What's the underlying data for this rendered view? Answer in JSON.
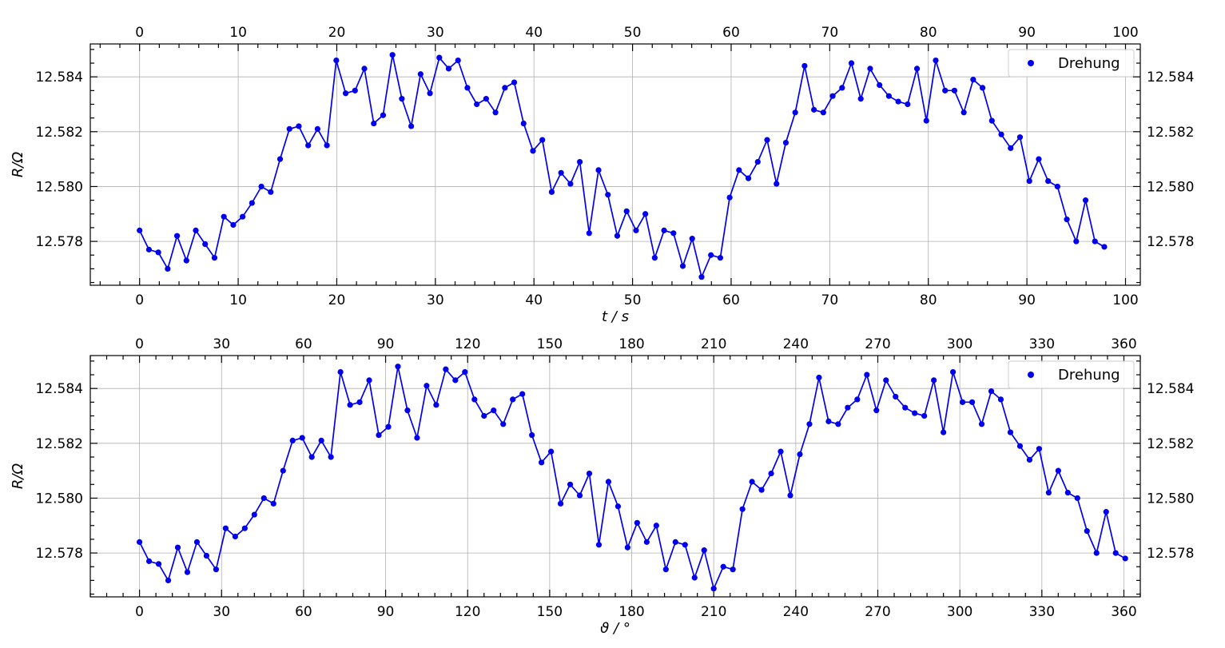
{
  "series_color": "#0000ee",
  "chart_data": [
    {
      "type": "line",
      "marker": "circle",
      "grid": true,
      "legend": {
        "placement": "top-right",
        "entries": [
          "Drehung"
        ]
      },
      "xlabel": "t / s",
      "ylabel": "R/Ω",
      "xlim": [
        -5,
        101.5
      ],
      "ylim": [
        12.5764,
        12.5852
      ],
      "xticks": [
        0,
        10,
        20,
        30,
        40,
        50,
        60,
        70,
        80,
        90,
        100
      ],
      "yticks": [
        12.578,
        12.58,
        12.582,
        12.584
      ],
      "ytick_labels": [
        "12.578",
        "12.580",
        "12.582",
        "12.584"
      ],
      "top_xticks": [
        0,
        10,
        20,
        30,
        40,
        50,
        60,
        70,
        80,
        90,
        100
      ],
      "series": [
        {
          "name": "Drehung",
          "x": [
            0.0,
            0.95,
            1.9,
            2.85,
            3.8,
            4.75,
            5.7,
            6.65,
            7.6,
            8.55,
            9.5,
            10.45,
            11.4,
            12.35,
            13.3,
            14.25,
            15.2,
            16.15,
            17.1,
            18.05,
            19.0,
            19.95,
            20.9,
            21.85,
            22.8,
            23.75,
            24.7,
            25.65,
            26.6,
            27.55,
            28.5,
            29.45,
            30.4,
            31.35,
            32.3,
            33.25,
            34.2,
            35.15,
            36.1,
            37.05,
            38.0,
            38.95,
            39.9,
            40.85,
            41.8,
            42.75,
            43.7,
            44.65,
            45.6,
            46.55,
            47.5,
            48.45,
            49.4,
            50.35,
            51.3,
            52.25,
            53.2,
            54.15,
            55.1,
            56.05,
            57.0,
            57.95,
            58.9,
            59.85,
            60.8,
            61.75,
            62.7,
            63.65,
            64.6,
            65.55,
            66.5,
            67.45,
            68.4,
            69.35,
            70.3,
            71.25,
            72.2,
            73.15,
            74.1,
            75.05,
            76.0,
            76.95,
            77.9,
            78.85,
            79.8,
            80.75,
            81.7,
            82.65,
            83.6,
            84.55,
            85.5,
            86.45,
            87.4,
            88.35,
            89.3,
            90.25,
            91.2,
            92.15,
            93.1,
            94.05,
            95.0,
            95.95,
            96.9,
            97.85
          ],
          "y": [
            12.5784,
            12.5777,
            12.5776,
            12.577,
            12.5782,
            12.5773,
            12.5784,
            12.5779,
            12.5774,
            12.5789,
            12.5786,
            12.5789,
            12.5794,
            12.58,
            12.5798,
            12.581,
            12.5821,
            12.5822,
            12.5815,
            12.5821,
            12.5815,
            12.5846,
            12.5834,
            12.5835,
            12.5843,
            12.5823,
            12.5826,
            12.5848,
            12.5832,
            12.5822,
            12.5841,
            12.5834,
            12.5847,
            12.5843,
            12.5846,
            12.5836,
            12.583,
            12.5832,
            12.5827,
            12.5836,
            12.5838,
            12.5823,
            12.5813,
            12.5817,
            12.5798,
            12.5805,
            12.5801,
            12.5809,
            12.5783,
            12.5806,
            12.5797,
            12.5782,
            12.5791,
            12.5784,
            12.579,
            12.5774,
            12.5784,
            12.5783,
            12.5771,
            12.5781,
            12.5767,
            12.5775,
            12.5774,
            12.5796,
            12.5806,
            12.5803,
            12.5809,
            12.5817,
            12.5801,
            12.5816,
            12.5827,
            12.5844,
            12.5828,
            12.5827,
            12.5833,
            12.5836,
            12.5845,
            12.5832,
            12.5843,
            12.5837,
            12.5833,
            12.5831,
            12.583,
            12.5843,
            12.5824,
            12.5846,
            12.5835,
            12.5835,
            12.5827,
            12.5839,
            12.5836,
            12.5824,
            12.5819,
            12.5814,
            12.5818,
            12.5802,
            12.581,
            12.5802,
            12.58,
            12.5788,
            12.578,
            12.5795,
            12.578,
            12.5778
          ]
        }
      ]
    },
    {
      "type": "line",
      "marker": "circle",
      "grid": true,
      "legend": {
        "placement": "top-right",
        "entries": [
          "Drehung"
        ]
      },
      "xlabel": "ϑ / °",
      "ylabel": "R/Ω",
      "xlim": [
        -18,
        366
      ],
      "ylim": [
        12.5764,
        12.5852
      ],
      "xticks": [
        0,
        30,
        60,
        90,
        120,
        150,
        180,
        210,
        240,
        270,
        300,
        330,
        360
      ],
      "yticks": [
        12.578,
        12.58,
        12.582,
        12.584
      ],
      "ytick_labels": [
        "12.578",
        "12.580",
        "12.582",
        "12.584"
      ],
      "top_xticks": [
        0,
        30,
        60,
        90,
        120,
        150,
        180,
        210,
        240,
        270,
        300,
        330,
        360
      ],
      "series": [
        {
          "name": "Drehung",
          "x": [
            0.0,
            3.5,
            7.0,
            10.5,
            14.0,
            17.5,
            21.0,
            24.5,
            28.0,
            31.5,
            35.0,
            38.5,
            42.0,
            45.5,
            49.0,
            52.5,
            56.0,
            59.5,
            63.0,
            66.5,
            70.0,
            73.5,
            77.0,
            80.5,
            84.0,
            87.5,
            91.0,
            94.5,
            98.0,
            101.5,
            105.0,
            108.5,
            112.0,
            115.5,
            119.0,
            122.5,
            126.0,
            129.5,
            133.0,
            136.5,
            140.0,
            143.5,
            147.0,
            150.5,
            154.0,
            157.5,
            161.0,
            164.5,
            168.0,
            171.5,
            175.0,
            178.5,
            182.0,
            185.5,
            189.0,
            192.5,
            196.0,
            199.5,
            203.0,
            206.5,
            210.0,
            213.5,
            217.0,
            220.5,
            224.0,
            227.5,
            231.0,
            234.5,
            238.0,
            241.5,
            245.0,
            248.5,
            252.0,
            255.5,
            259.0,
            262.5,
            266.0,
            269.5,
            273.0,
            276.5,
            280.0,
            283.5,
            287.0,
            290.5,
            294.0,
            297.5,
            301.0,
            304.5,
            308.0,
            311.5,
            315.0,
            318.5,
            322.0,
            325.5,
            329.0,
            332.5,
            336.0,
            339.5,
            343.0,
            346.5,
            350.0,
            353.5,
            357.0,
            360.5
          ],
          "y": [
            12.5784,
            12.5777,
            12.5776,
            12.577,
            12.5782,
            12.5773,
            12.5784,
            12.5779,
            12.5774,
            12.5789,
            12.5786,
            12.5789,
            12.5794,
            12.58,
            12.5798,
            12.581,
            12.5821,
            12.5822,
            12.5815,
            12.5821,
            12.5815,
            12.5846,
            12.5834,
            12.5835,
            12.5843,
            12.5823,
            12.5826,
            12.5848,
            12.5832,
            12.5822,
            12.5841,
            12.5834,
            12.5847,
            12.5843,
            12.5846,
            12.5836,
            12.583,
            12.5832,
            12.5827,
            12.5836,
            12.5838,
            12.5823,
            12.5813,
            12.5817,
            12.5798,
            12.5805,
            12.5801,
            12.5809,
            12.5783,
            12.5806,
            12.5797,
            12.5782,
            12.5791,
            12.5784,
            12.579,
            12.5774,
            12.5784,
            12.5783,
            12.5771,
            12.5781,
            12.5767,
            12.5775,
            12.5774,
            12.5796,
            12.5806,
            12.5803,
            12.5809,
            12.5817,
            12.5801,
            12.5816,
            12.5827,
            12.5844,
            12.5828,
            12.5827,
            12.5833,
            12.5836,
            12.5845,
            12.5832,
            12.5843,
            12.5837,
            12.5833,
            12.5831,
            12.583,
            12.5843,
            12.5824,
            12.5846,
            12.5835,
            12.5835,
            12.5827,
            12.5839,
            12.5836,
            12.5824,
            12.5819,
            12.5814,
            12.5818,
            12.5802,
            12.581,
            12.5802,
            12.58,
            12.5788,
            12.578,
            12.5795,
            12.578,
            12.5778
          ]
        }
      ]
    }
  ]
}
